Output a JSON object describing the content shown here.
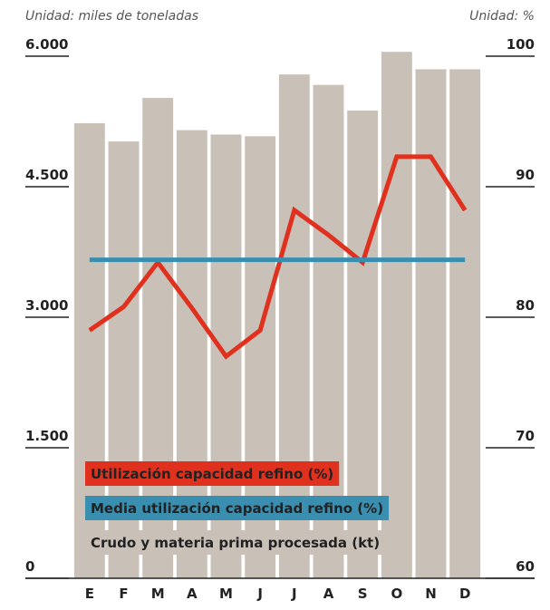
{
  "chart_data": {
    "type": "combo",
    "y_unit_label": "Unidad: miles de toneladas",
    "y2_unit_label": "Unidad: %",
    "categories": [
      "E",
      "F",
      "M",
      "A",
      "M",
      "J",
      "J",
      "A",
      "S",
      "O",
      "N",
      "D"
    ],
    "series": [
      {
        "name": "Crudo y materia prima procesada (kt)",
        "type": "bar",
        "axis": "y",
        "color": "#c9c0b7",
        "values": [
          5230,
          5020,
          5520,
          5150,
          5100,
          5080,
          5790,
          5670,
          5375,
          6050,
          5850,
          5850
        ]
      },
      {
        "name": "Utilización capacidad refino (%)",
        "type": "line",
        "axis": "y2",
        "color": "#e0301e",
        "values": [
          79.0,
          80.8,
          84.2,
          80.7,
          77.0,
          79.0,
          88.2,
          86.3,
          84.2,
          92.3,
          92.3,
          88.2
        ]
      },
      {
        "name": "Media utilización capacidad refino (%)",
        "type": "line",
        "axis": "y2",
        "color": "#3a8fb0",
        "values": [
          84.4,
          84.4,
          84.4,
          84.4,
          84.4,
          84.4,
          84.4,
          84.4,
          84.4,
          84.4,
          84.4,
          84.4
        ]
      }
    ],
    "ylim": [
      0,
      6000
    ],
    "yticks": [
      {
        "value": 0,
        "label": "0"
      },
      {
        "value": 1500,
        "label": "1.500"
      },
      {
        "value": 3000,
        "label": "3.000"
      },
      {
        "value": 4500,
        "label": "4.500"
      },
      {
        "value": 6000,
        "label": "6.000"
      }
    ],
    "y2lim": [
      60,
      100
    ],
    "y2ticks": [
      60,
      70,
      80,
      90,
      100
    ],
    "legend_order": [
      1,
      2,
      0
    ]
  }
}
